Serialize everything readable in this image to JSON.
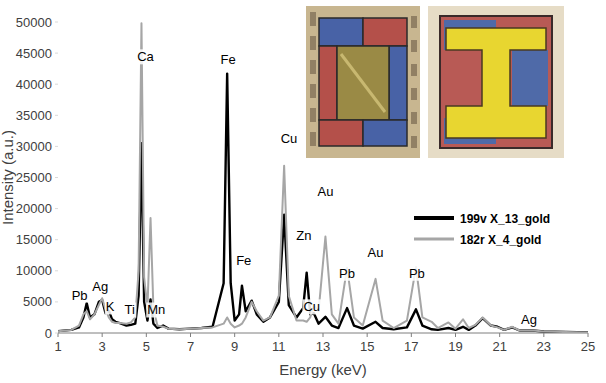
{
  "chart_data": {
    "type": "line",
    "x_label": "Energy (keV)",
    "y_label": "Intensity (a.u.)",
    "xlim": [
      1,
      25
    ],
    "ylim": [
      0,
      50000
    ],
    "xticks": [
      1,
      3,
      5,
      7,
      9,
      11,
      13,
      15,
      17,
      19,
      21,
      23,
      25
    ],
    "yticks": [
      0,
      5000,
      10000,
      15000,
      20000,
      25000,
      30000,
      35000,
      40000,
      45000,
      50000
    ],
    "grid": false,
    "legend": "right",
    "x": [
      1.0,
      1.6,
      1.95,
      2.15,
      2.3,
      2.45,
      2.65,
      2.85,
      3.0,
      3.15,
      3.3,
      3.45,
      3.6,
      3.8,
      4.1,
      4.3,
      4.5,
      4.65,
      4.78,
      4.9,
      5.05,
      5.19,
      5.32,
      5.5,
      5.76,
      6.0,
      6.5,
      7.0,
      7.5,
      8.0,
      8.5,
      8.66,
      8.82,
      9.0,
      9.2,
      9.33,
      9.5,
      9.77,
      10.0,
      10.3,
      10.6,
      11.0,
      11.24,
      11.45,
      11.8,
      12.1,
      12.26,
      12.42,
      12.58,
      12.8,
      13.11,
      13.4,
      13.7,
      14.09,
      14.4,
      14.8,
      15.38,
      15.7,
      16.2,
      16.8,
      17.21,
      17.5,
      17.92,
      18.2,
      18.68,
      19.0,
      19.34,
      19.6,
      19.9,
      20.23,
      20.6,
      20.9,
      21.2,
      21.57,
      21.9,
      22.5,
      23.0,
      24.0,
      25.0
    ],
    "series": [
      {
        "name": "199v X_13_gold",
        "color": "#000000",
        "values": [
          300,
          500,
          900,
          2500,
          4800,
          2500,
          3000,
          5000,
          5300,
          3200,
          3600,
          2200,
          1800,
          1600,
          1200,
          1300,
          1500,
          6000,
          30500,
          5000,
          2000,
          5400,
          1500,
          800,
          1200,
          700,
          600,
          700,
          800,
          1000,
          8000,
          41700,
          8000,
          2000,
          3000,
          7600,
          3500,
          5200,
          3000,
          1800,
          2500,
          5000,
          19000,
          4500,
          2500,
          4000,
          9700,
          3000,
          3200,
          1500,
          2600,
          1200,
          800,
          4000,
          1200,
          700,
          1800,
          800,
          600,
          900,
          3800,
          1200,
          600,
          500,
          800,
          500,
          1000,
          500,
          1200,
          2400,
          1200,
          1000,
          500,
          900,
          400,
          400,
          250,
          150,
          100
        ]
      },
      {
        "name": "182r X_4_gold",
        "color": "#a6a6a6",
        "values": [
          300,
          500,
          1200,
          3000,
          3500,
          2200,
          3000,
          4500,
          5600,
          3800,
          2500,
          1800,
          1600,
          1600,
          1500,
          1700,
          2500,
          10000,
          49800,
          9000,
          4000,
          18500,
          4000,
          1200,
          1000,
          700,
          600,
          700,
          800,
          900,
          1500,
          2500,
          1500,
          900,
          1200,
          1500,
          2500,
          5000,
          3500,
          2000,
          2500,
          6000,
          26900,
          6000,
          2000,
          2000,
          1800,
          2500,
          4500,
          3500,
          15500,
          3000,
          1500,
          10500,
          2500,
          1200,
          8700,
          2000,
          800,
          2000,
          10600,
          2500,
          1800,
          800,
          1700,
          700,
          2200,
          800,
          1300,
          2500,
          1200,
          900,
          500,
          1000,
          400,
          400,
          250,
          150,
          100
        ]
      }
    ],
    "annotations": [
      {
        "text": "Pb",
        "x": 1.98,
        "y": 6100
      },
      {
        "text": "Ag",
        "x": 2.91,
        "y": 7400
      },
      {
        "text": "K",
        "x": 3.36,
        "y": 4200
      },
      {
        "text": "Ca",
        "x": 4.96,
        "y": 44400
      },
      {
        "text": "Ti",
        "x": 4.25,
        "y": 3700
      },
      {
        "text": "Mn",
        "x": 5.45,
        "y": 3700
      },
      {
        "text": "Fe",
        "x": 8.7,
        "y": 43900
      },
      {
        "text": "Fe",
        "x": 9.41,
        "y": 11700
      },
      {
        "text": "Cu",
        "x": 11.46,
        "y": 31300
      },
      {
        "text": "Zn",
        "x": 12.13,
        "y": 15600
      },
      {
        "text": "Cu",
        "x": 12.49,
        "y": 4200
      },
      {
        "text": "Au",
        "x": 13.11,
        "y": 22800
      },
      {
        "text": "Pb",
        "x": 14.09,
        "y": 9600
      },
      {
        "text": "Au",
        "x": 15.38,
        "y": 13000
      },
      {
        "text": "Pb",
        "x": 17.25,
        "y": 9600
      },
      {
        "text": "Ag",
        "x": 22.33,
        "y": 2100
      }
    ]
  }
}
